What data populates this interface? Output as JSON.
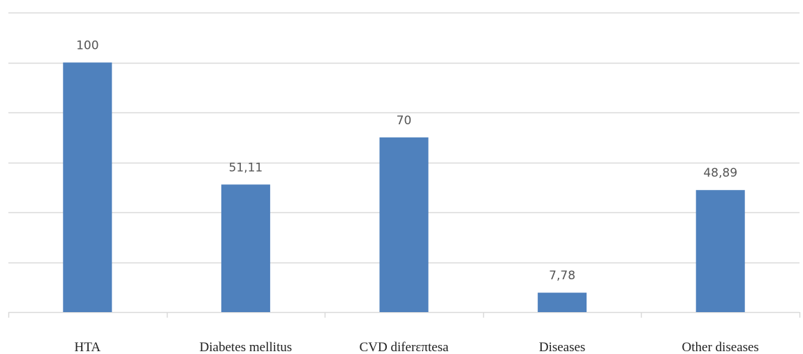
{
  "chart_data": {
    "type": "bar",
    "categories": [
      "HTA",
      "Diabetes mellitus",
      "CVD diferεπtesa",
      "Diseases",
      "Other diseases"
    ],
    "values": [
      100,
      51.11,
      70,
      7.78,
      48.89
    ],
    "data_labels": [
      "100",
      "51,11",
      "70",
      "7,78",
      "48,89"
    ],
    "title": "",
    "xlabel": "",
    "ylabel": "",
    "ylim": [
      0,
      120
    ],
    "y_gridline_step": 20,
    "grid": true,
    "y_tick_labels_shown": false,
    "legend": "none",
    "colors": {
      "bar": "#4f81bd",
      "gridline": "#d9d9d9",
      "axis": "#d9d9d9",
      "data_label": "#555555",
      "category_label": "#222222"
    }
  }
}
